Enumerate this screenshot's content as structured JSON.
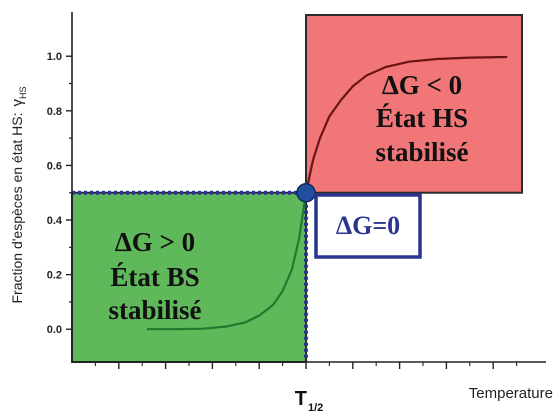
{
  "chart_data": {
    "type": "line",
    "xlabel": "Temperature",
    "ylabel": "Fraction d'espèces en état HS:",
    "ylabel_symbol": "γ",
    "ylabel_symbol_sub": "HS",
    "ylim": [
      -0.12,
      1.14
    ],
    "xlim": [
      0,
      10
    ],
    "yticks": [
      0.0,
      0.2,
      0.4,
      0.6,
      0.8,
      1.0
    ],
    "ytick_labels": [
      "0.0",
      "0.2",
      "0.4",
      "0.6",
      "0.8",
      "1.0"
    ],
    "xticks": [
      1,
      2,
      3,
      4,
      5,
      6,
      7,
      8,
      9
    ],
    "x_marker_label": "T",
    "x_marker_sub": "1/2",
    "t_half": 5,
    "dotted_level": 0.5,
    "curve_low": {
      "x": [
        1.6,
        2.2,
        2.8,
        3.3,
        3.7,
        4.0,
        4.3,
        4.5,
        4.7,
        4.85,
        5.0
      ],
      "y": [
        0.0,
        0.0,
        0.002,
        0.01,
        0.025,
        0.05,
        0.09,
        0.14,
        0.22,
        0.33,
        0.5
      ]
    },
    "curve_high": {
      "x": [
        5.0,
        5.15,
        5.3,
        5.5,
        5.75,
        6.0,
        6.3,
        6.7,
        7.2,
        7.8,
        8.5,
        9.3
      ],
      "y": [
        0.5,
        0.62,
        0.7,
        0.78,
        0.84,
        0.89,
        0.93,
        0.96,
        0.98,
        0.99,
        0.995,
        0.997
      ]
    },
    "colors": {
      "green_box": "#5fb85a",
      "red_box": "#f07678",
      "green_curve": "#1f7a2e",
      "red_curve": "#6b1414",
      "dotted": "#2a3590",
      "marker": "#1f4f9e",
      "label_box": "#2a3590"
    }
  },
  "annotations": {
    "low": {
      "line1": "ΔG > 0",
      "line2": "État BS",
      "line3": "stabilisé"
    },
    "high": {
      "line1": "ΔG < 0",
      "line2": "État HS",
      "line3": "stabilisé"
    },
    "equilibrium": "ΔG=0"
  }
}
